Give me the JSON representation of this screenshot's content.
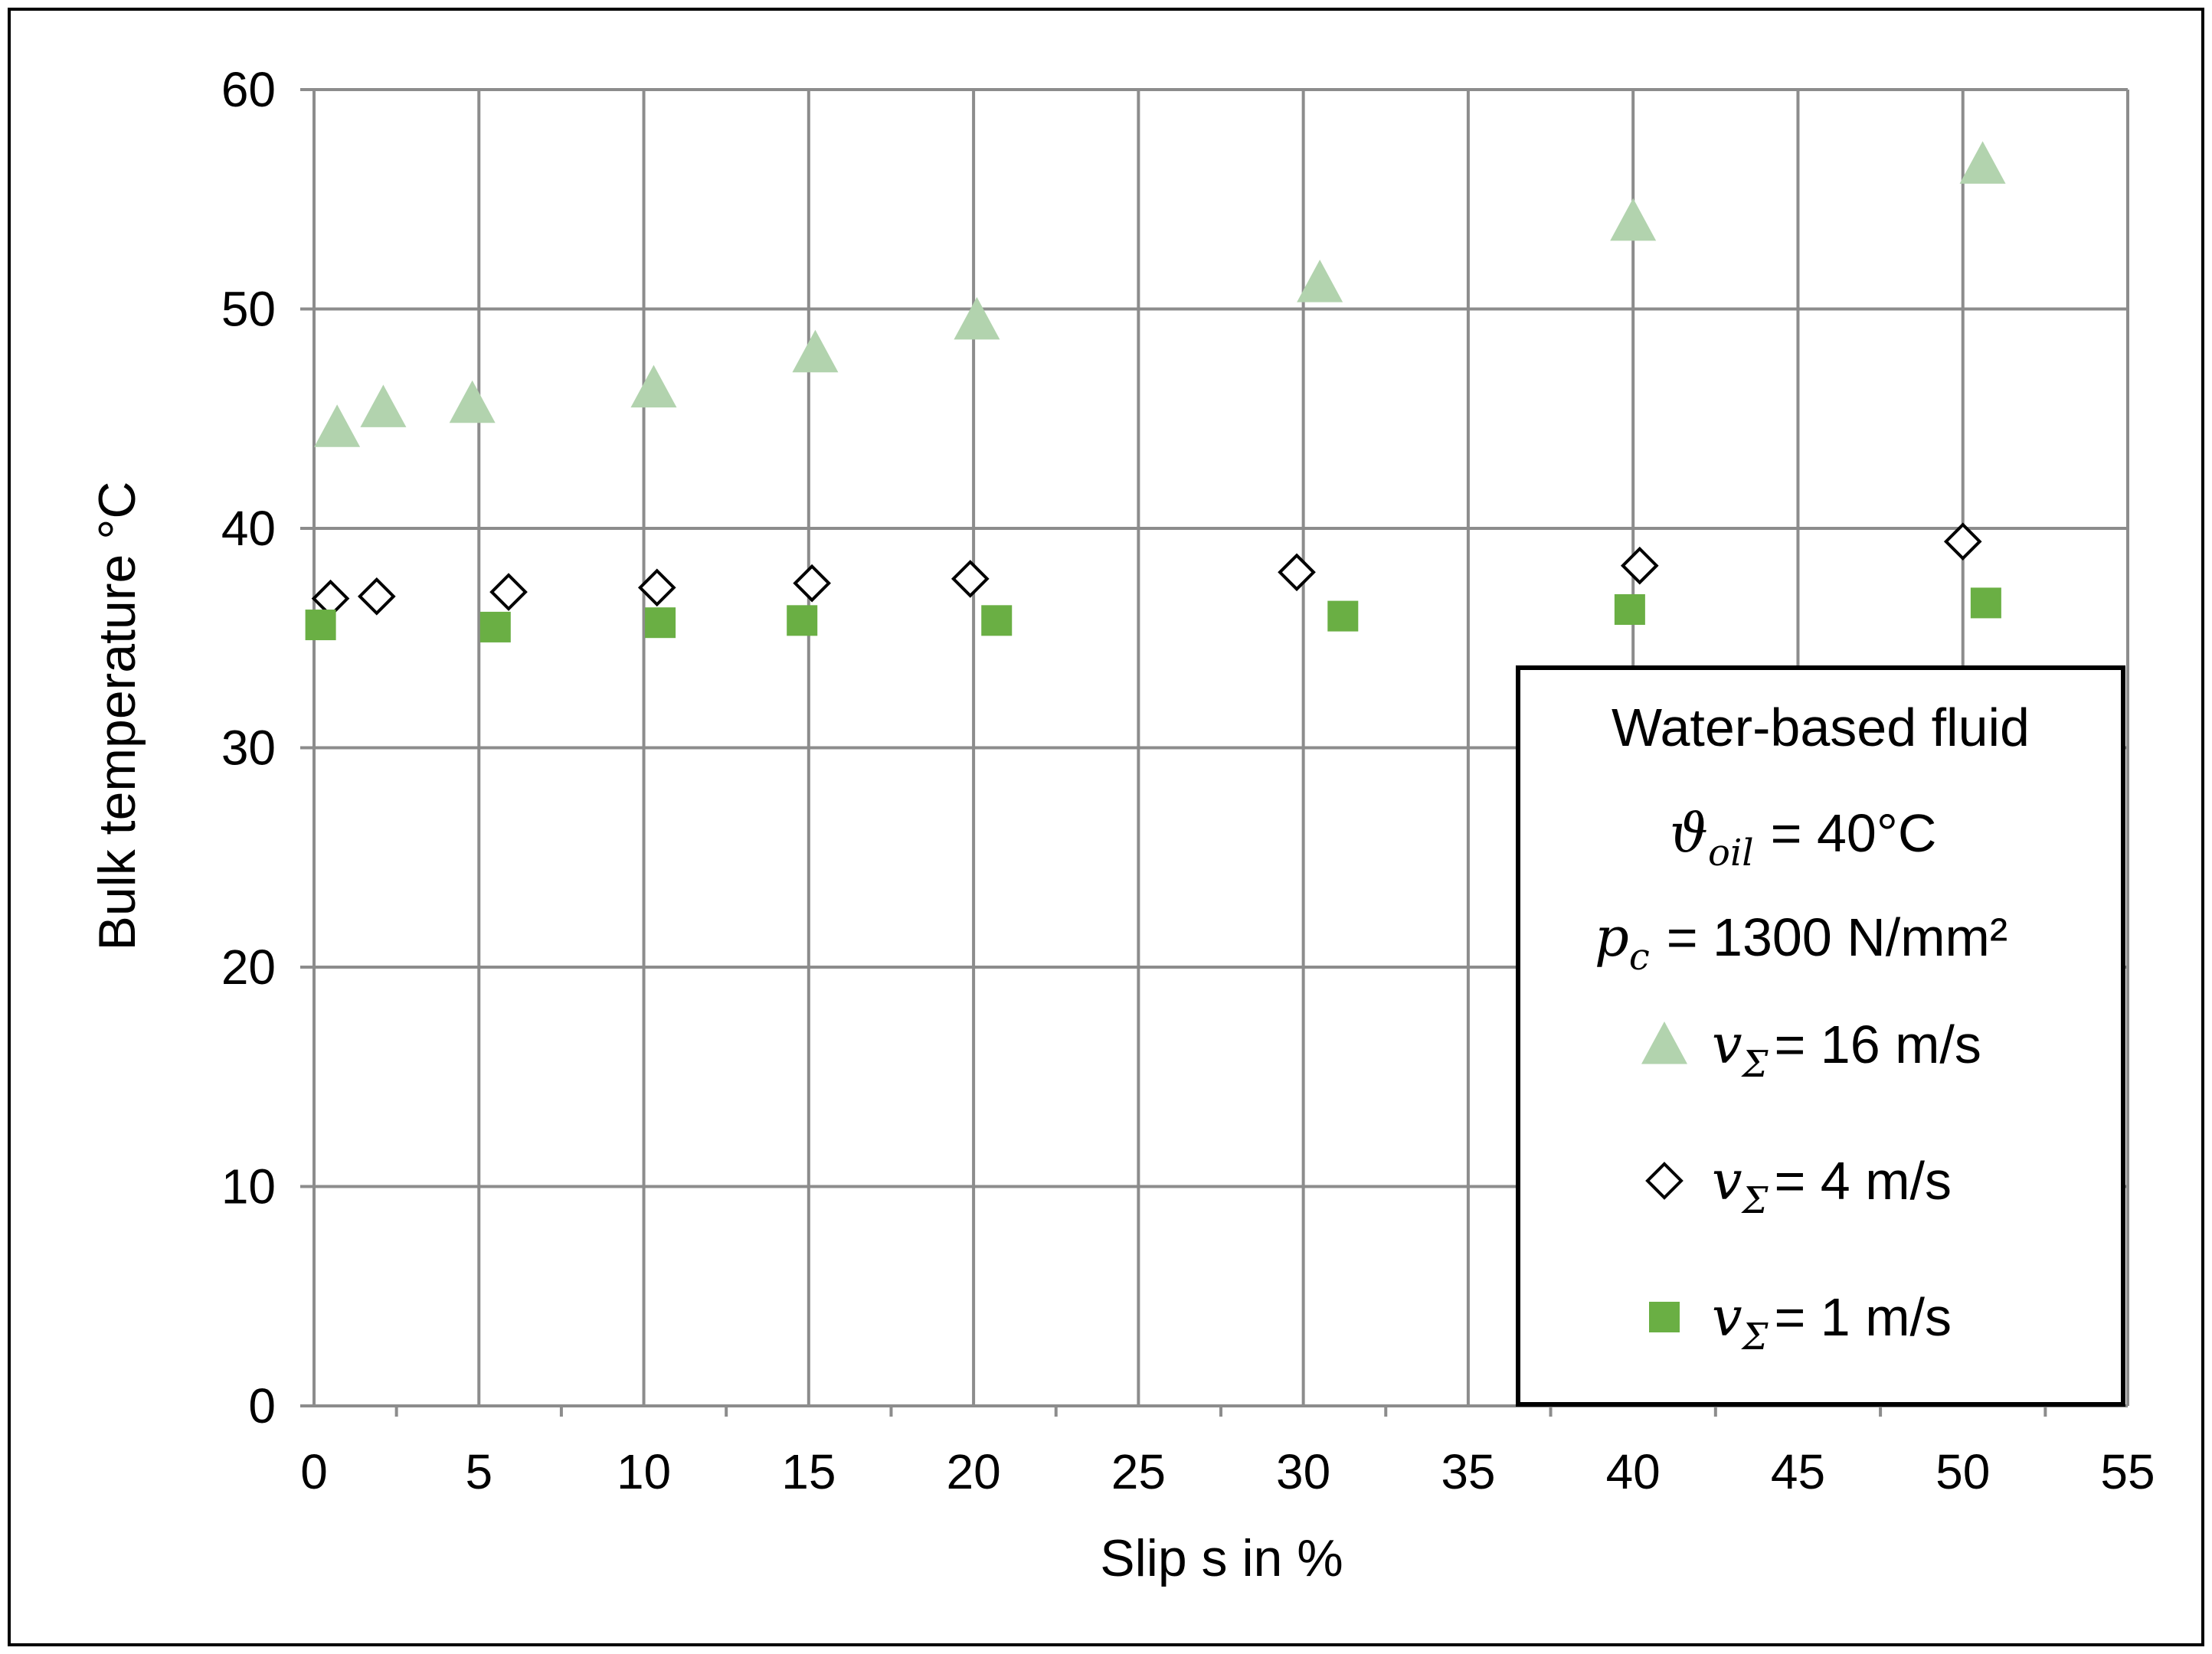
{
  "chart_data": {
    "type": "scatter",
    "xlabel": "Slip s in %",
    "ylabel": "Bulk temperature °C",
    "xlim": [
      0,
      55
    ],
    "ylim": [
      0,
      60
    ],
    "xticks": [
      "0",
      "5",
      "10",
      "15",
      "20",
      "25",
      "30",
      "35",
      "40",
      "45",
      "50",
      "55"
    ],
    "yticks": [
      "0",
      "10",
      "20",
      "30",
      "40",
      "50",
      "60"
    ],
    "grid": true,
    "legend": {
      "placement": "bottom-right",
      "title": "Water-based fluid",
      "oil_symbol": "ϑ",
      "oil_sub": "oil",
      "oil_value": "= 40°C",
      "pc_symbol": "p",
      "pc_sub": "c",
      "pc_value": "= 1300 N/mm²",
      "v_symbol": "v",
      "v_sub": "Σ"
    },
    "series": [
      {
        "name": "= 16 m/s",
        "marker": "triangle",
        "color": "#b2d3ae",
        "x": [
          0.7,
          2.1,
          4.8,
          10.3,
          15.2,
          20.1,
          30.5,
          40.0,
          50.6
        ],
        "y": [
          44.6,
          45.5,
          45.7,
          46.4,
          48.0,
          49.5,
          51.2,
          54.0,
          56.6
        ]
      },
      {
        "name": "= 4 m/s",
        "marker": "diamond",
        "color": "#000000",
        "x": [
          0.5,
          1.9,
          5.9,
          10.4,
          15.1,
          19.9,
          29.8,
          40.2,
          50.0
        ],
        "y": [
          36.8,
          36.9,
          37.1,
          37.3,
          37.5,
          37.7,
          38.0,
          38.3,
          39.4
        ]
      },
      {
        "name": "= 1 m/s",
        "marker": "square",
        "color": "#6aaf44",
        "x": [
          0.2,
          5.5,
          10.5,
          14.8,
          20.7,
          31.2,
          39.9,
          50.7
        ],
        "y": [
          35.6,
          35.5,
          35.7,
          35.8,
          35.8,
          36.0,
          36.3,
          36.6
        ]
      }
    ]
  }
}
